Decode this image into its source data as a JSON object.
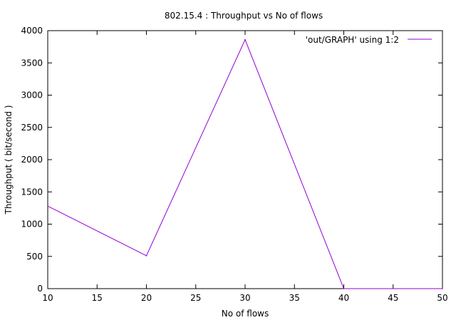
{
  "chart_data": {
    "type": "line",
    "title": "802.15.4 : Throughput vs No of flows",
    "xlabel": "No of flows",
    "ylabel": "Throughput ( bit/second )",
    "xlim": [
      10,
      50
    ],
    "ylim": [
      0,
      4000
    ],
    "xticks": [
      10,
      15,
      20,
      25,
      30,
      35,
      40,
      45,
      50
    ],
    "yticks": [
      0,
      500,
      1000,
      1500,
      2000,
      2500,
      3000,
      3500,
      4000
    ],
    "grid": false,
    "legend_position": "top-right",
    "series": [
      {
        "name": "'out/GRAPH' using 1:2",
        "color": "#9400d3",
        "x": [
          10,
          20,
          30,
          40,
          50
        ],
        "y": [
          1280,
          510,
          3860,
          0,
          0
        ]
      }
    ]
  }
}
